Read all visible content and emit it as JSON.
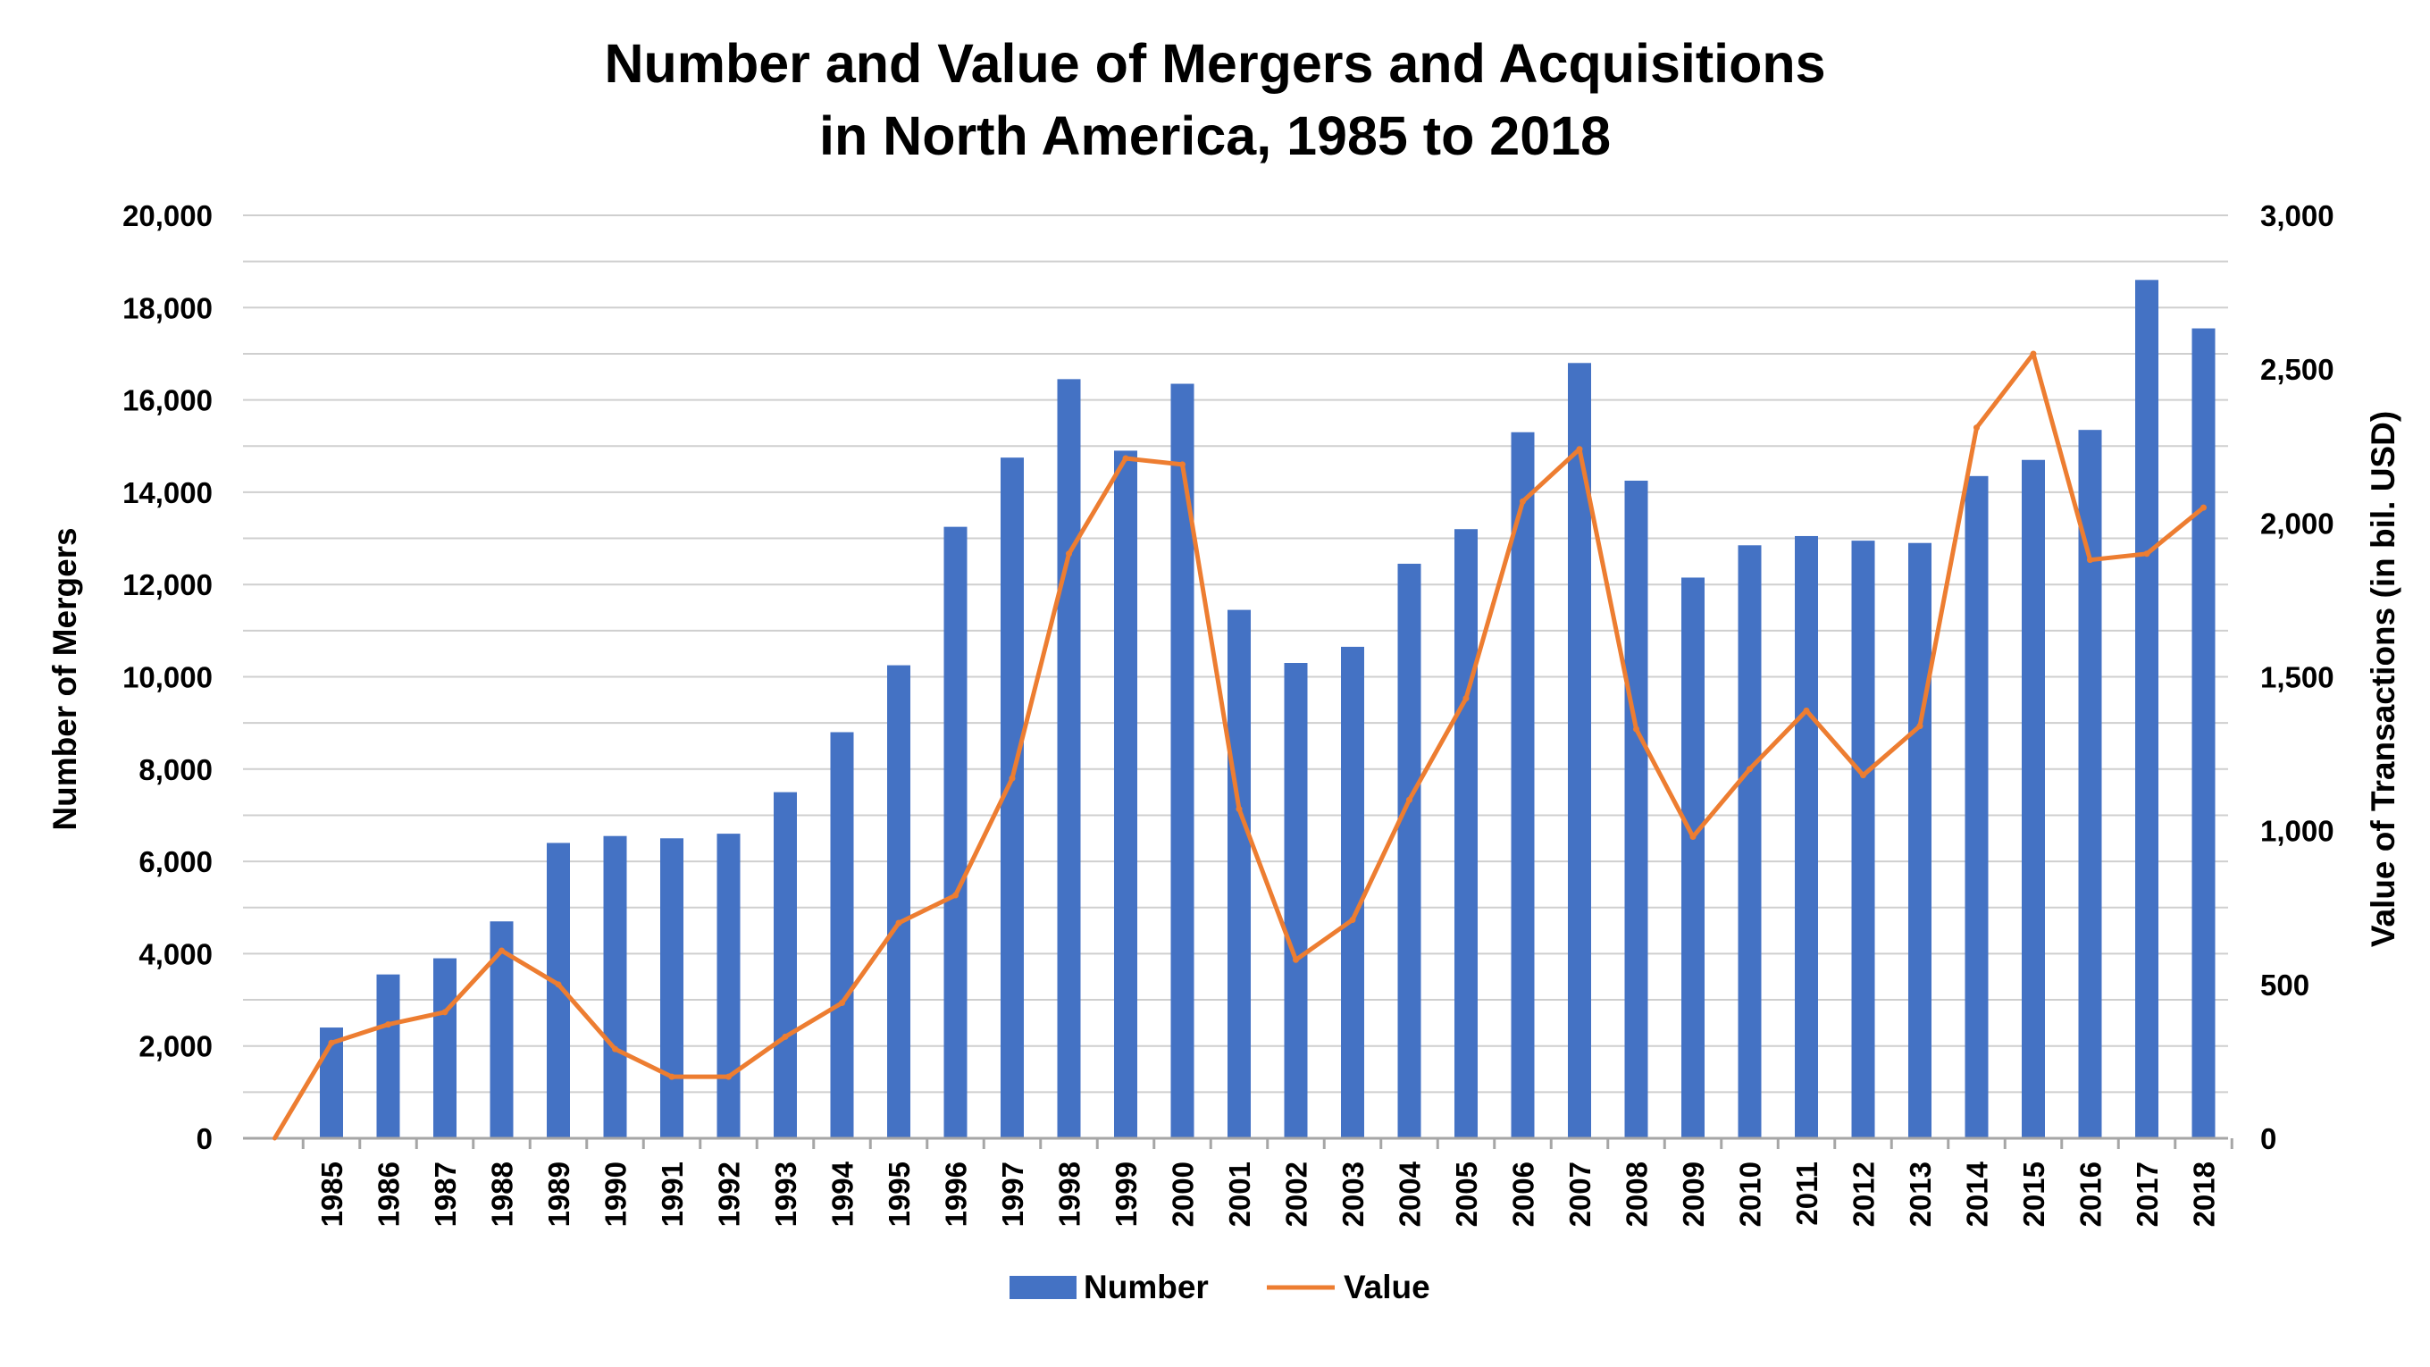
{
  "chart_data": {
    "type": "bar+line",
    "title_lines": [
      "Number and Value of Mergers and Acquisitions",
      "in North America, 1985 to 2018"
    ],
    "ylabel_left": "Number of Mergers",
    "ylabel_right": "Value of Transactions (in bil. USD)",
    "ylim_left": [
      0,
      20000
    ],
    "ylim_right": [
      0,
      3000
    ],
    "yticks_left": [
      "0",
      "2,000",
      "4,000",
      "6,000",
      "8,000",
      "10,000",
      "12,000",
      "14,000",
      "16,000",
      "18,000",
      "20,000"
    ],
    "yticks_right": [
      "0",
      "500",
      "1,000",
      "1,500",
      "2,000",
      "2,500",
      "3,000"
    ],
    "categories": [
      "1985",
      "1986",
      "1987",
      "1988",
      "1989",
      "1990",
      "1991",
      "1992",
      "1993",
      "1994",
      "1995",
      "1996",
      "1997",
      "1998",
      "1999",
      "2000",
      "2001",
      "2002",
      "2003",
      "2004",
      "2005",
      "2006",
      "2007",
      "2008",
      "2009",
      "2010",
      "2011",
      "2012",
      "2013",
      "2014",
      "2015",
      "2016",
      "2017",
      "2018"
    ],
    "series": [
      {
        "name": "Number",
        "type": "bar",
        "axis": "left",
        "color": "#4472C4",
        "values": [
          2400,
          3550,
          3900,
          4700,
          6400,
          6550,
          6500,
          6600,
          7500,
          8800,
          10250,
          13250,
          14750,
          16450,
          14900,
          16350,
          11450,
          10300,
          10650,
          12450,
          13200,
          15300,
          16800,
          14250,
          12150,
          12850,
          13050,
          12950,
          12900,
          14350,
          14700,
          15350,
          18600,
          17550
        ]
      },
      {
        "name": "Value",
        "type": "line",
        "axis": "right",
        "color": "#ED7D31",
        "start_value": 0,
        "values": [
          310,
          370,
          410,
          610,
          500,
          290,
          200,
          200,
          330,
          440,
          700,
          790,
          1170,
          1900,
          2210,
          2190,
          1070,
          580,
          710,
          1100,
          1430,
          2070,
          2240,
          1330,
          980,
          1200,
          1390,
          1180,
          1340,
          2310,
          2550,
          1880,
          1900,
          2050
        ]
      }
    ],
    "legend": [
      "Number",
      "Value"
    ],
    "legend_position": "bottom"
  }
}
